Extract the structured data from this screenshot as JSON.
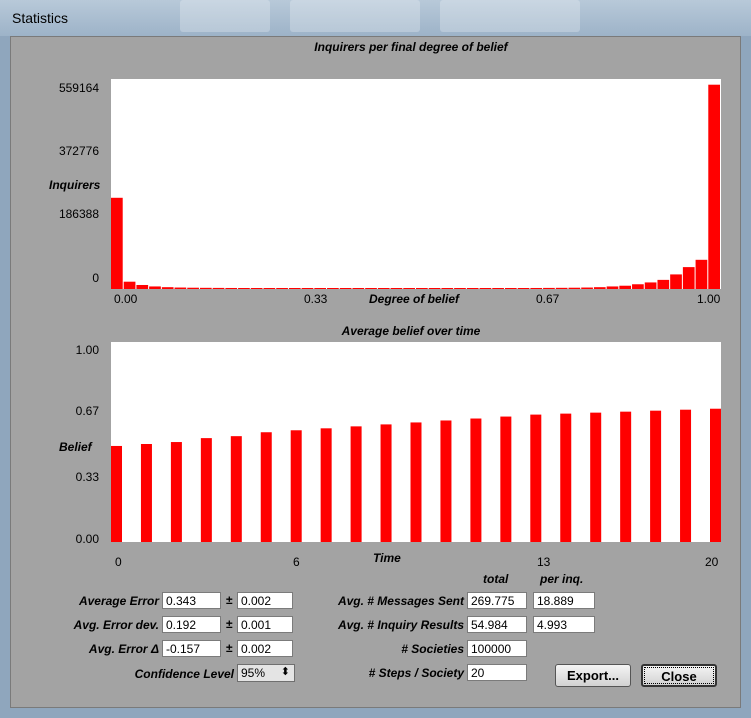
{
  "window": {
    "title": "Statistics"
  },
  "colors": {
    "bar": "#ff0000",
    "plot_bg": "#ffffff",
    "panel_bg": "#a3a3a3"
  },
  "chart_data": [
    {
      "type": "bar",
      "title": "Inquirers per final degree of belief",
      "xlabel": "Degree of belief",
      "ylabel": "Inquirers",
      "yticks": [
        "559164",
        "372776",
        "186388",
        "0"
      ],
      "xticks": [
        "0.00",
        "0.33",
        "0.67",
        "1.00"
      ],
      "ylim": [
        0,
        559164
      ],
      "xlim": [
        0,
        1
      ],
      "values": [
        250000,
        20000,
        11000,
        7000,
        5000,
        4000,
        3500,
        3200,
        3000,
        2800,
        2700,
        2600,
        2500,
        2500,
        2400,
        2400,
        2300,
        2300,
        2300,
        2200,
        2200,
        2200,
        2200,
        2200,
        2300,
        2300,
        2300,
        2400,
        2400,
        2500,
        2500,
        2600,
        2700,
        2800,
        3000,
        3200,
        3500,
        4000,
        5000,
        7000,
        9000,
        13000,
        18000,
        25000,
        40000,
        60000,
        80000,
        560000
      ]
    },
    {
      "type": "bar",
      "title": "Average belief over time",
      "xlabel": "Time",
      "ylabel": "Belief",
      "yticks": [
        "1.00",
        "0.67",
        "0.33",
        "0.00"
      ],
      "xticks": [
        "0",
        "6",
        "13",
        "20"
      ],
      "ylim": [
        0,
        1
      ],
      "x": [
        0,
        1,
        2,
        3,
        4,
        5,
        6,
        7,
        8,
        9,
        10,
        11,
        12,
        13,
        14,
        15,
        16,
        17,
        18,
        19,
        20
      ],
      "values": [
        0.49,
        0.5,
        0.51,
        0.53,
        0.54,
        0.56,
        0.57,
        0.58,
        0.59,
        0.6,
        0.61,
        0.62,
        0.63,
        0.64,
        0.65,
        0.655,
        0.66,
        0.665,
        0.67,
        0.675,
        0.68
      ]
    }
  ],
  "stats": {
    "avg_error_label": "Average Error",
    "avg_error": "0.343",
    "avg_error_pm": "0.002",
    "err_dev_label": "Avg. Error dev.",
    "err_dev": "0.192",
    "err_dev_pm": "0.001",
    "err_delta_label": "Avg. Error Δ",
    "err_delta": "-0.157",
    "err_delta_pm": "0.002",
    "pm_symbol": "±",
    "confidence_label": "Confidence Level",
    "confidence_value": "95%",
    "col_total": "total",
    "col_per_inq": "per inq.",
    "msgs_label": "Avg. # Messages Sent",
    "msgs_total": "269.775",
    "msgs_per": "18.889",
    "inq_label": "Avg. # Inquiry Results",
    "inq_total": "54.984",
    "inq_per": "4.993",
    "societies_label": "# Societies",
    "societies": "100000",
    "steps_label": "# Steps / Society",
    "steps": "20"
  },
  "buttons": {
    "export": "Export...",
    "close": "Close"
  }
}
